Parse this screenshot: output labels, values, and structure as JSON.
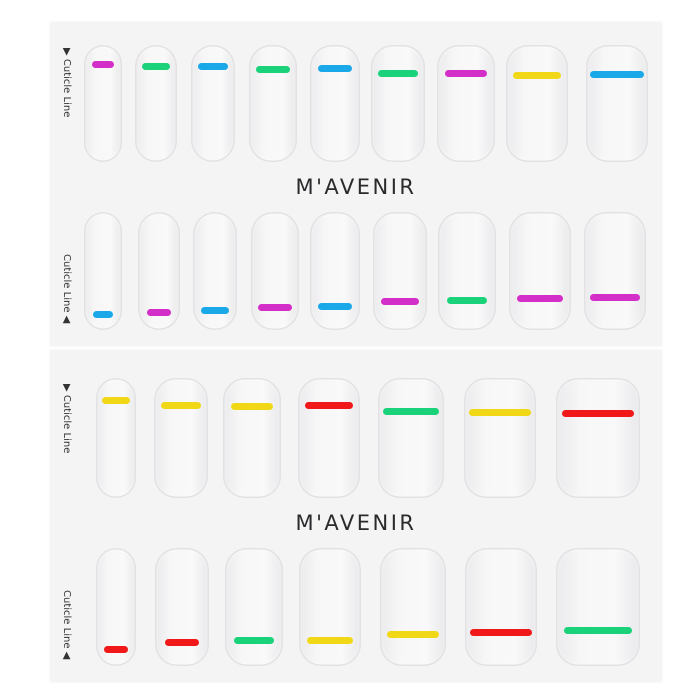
{
  "brand": "M'AVENIR",
  "cuticle_label": "Cuticle Line",
  "colors": {
    "magenta": "#d42ec8",
    "green": "#1ad27a",
    "blue": "#1aa8e8",
    "yellow": "#f0d816",
    "red": "#f01818"
  },
  "sheets": [
    {
      "rows": [
        {
          "stripe_position": "top",
          "stripes": [
            "magenta",
            "green",
            "blue",
            "green",
            "blue",
            "green",
            "magenta",
            "yellow",
            "blue"
          ]
        },
        {
          "stripe_position": "bottom",
          "stripes": [
            "blue",
            "magenta",
            "blue",
            "magenta",
            "blue",
            "magenta",
            "green",
            "magenta",
            "magenta"
          ]
        }
      ]
    },
    {
      "rows": [
        {
          "stripe_position": "top",
          "stripes": [
            "yellow",
            "yellow",
            "yellow",
            "red",
            "green",
            "yellow",
            "red"
          ]
        },
        {
          "stripe_position": "bottom",
          "stripes": [
            "red",
            "red",
            "green",
            "yellow",
            "yellow",
            "red",
            "green"
          ]
        }
      ]
    }
  ]
}
